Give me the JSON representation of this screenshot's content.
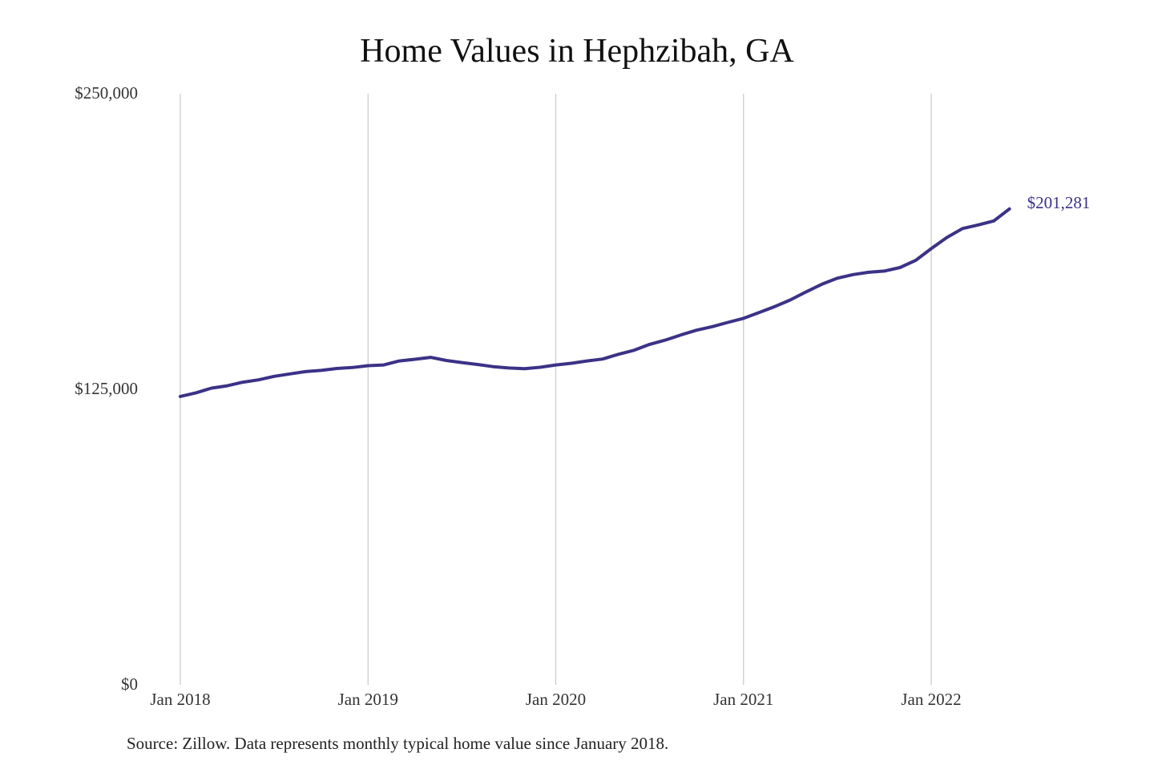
{
  "chart_data": {
    "type": "line",
    "title": "Home Values in Hephzibah, GA",
    "xlabel": "",
    "ylabel": "",
    "ylim": [
      0,
      250000
    ],
    "y_ticks": [
      0,
      125000,
      250000
    ],
    "y_tick_labels": [
      "$0",
      "$125,000",
      "$250,000"
    ],
    "x_ticks": [
      "2018-01",
      "2019-01",
      "2020-01",
      "2021-01",
      "2022-01"
    ],
    "x_tick_labels": [
      "Jan 2018",
      "Jan 2019",
      "Jan 2020",
      "Jan 2021",
      "Jan 2022"
    ],
    "grid": "vertical",
    "series": [
      {
        "color": "#3b3287",
        "points": [
          [
            "2018-01",
            122000
          ],
          [
            "2018-02",
            123500
          ],
          [
            "2018-03",
            125500
          ],
          [
            "2018-04",
            126500
          ],
          [
            "2018-05",
            128000
          ],
          [
            "2018-06",
            129000
          ],
          [
            "2018-07",
            130500
          ],
          [
            "2018-08",
            131500
          ],
          [
            "2018-09",
            132500
          ],
          [
            "2018-10",
            133000
          ],
          [
            "2018-11",
            133800
          ],
          [
            "2018-12",
            134200
          ],
          [
            "2019-01",
            135000
          ],
          [
            "2019-02",
            135300
          ],
          [
            "2019-03",
            137000
          ],
          [
            "2019-04",
            137700
          ],
          [
            "2019-05",
            138500
          ],
          [
            "2019-06",
            137200
          ],
          [
            "2019-07",
            136300
          ],
          [
            "2019-08",
            135500
          ],
          [
            "2019-09",
            134600
          ],
          [
            "2019-10",
            134000
          ],
          [
            "2019-11",
            133700
          ],
          [
            "2019-12",
            134300
          ],
          [
            "2020-01",
            135300
          ],
          [
            "2020-02",
            136000
          ],
          [
            "2020-03",
            137000
          ],
          [
            "2020-04",
            137800
          ],
          [
            "2020-05",
            139800
          ],
          [
            "2020-06",
            141500
          ],
          [
            "2020-07",
            144000
          ],
          [
            "2020-08",
            145800
          ],
          [
            "2020-09",
            148000
          ],
          [
            "2020-10",
            150000
          ],
          [
            "2020-11",
            151500
          ],
          [
            "2020-12",
            153300
          ],
          [
            "2021-01",
            155000
          ],
          [
            "2021-02",
            157500
          ],
          [
            "2021-03",
            160000
          ],
          [
            "2021-04",
            162800
          ],
          [
            "2021-05",
            166200
          ],
          [
            "2021-06",
            169400
          ],
          [
            "2021-07",
            172000
          ],
          [
            "2021-08",
            173500
          ],
          [
            "2021-09",
            174500
          ],
          [
            "2021-10",
            175000
          ],
          [
            "2021-11",
            176500
          ],
          [
            "2021-12",
            179500
          ],
          [
            "2022-01",
            184500
          ],
          [
            "2022-02",
            189200
          ],
          [
            "2022-03",
            193000
          ],
          [
            "2022-04",
            194500
          ],
          [
            "2022-05",
            196200
          ],
          [
            "2022-06",
            201281
          ]
        ]
      }
    ],
    "end_label": "$201,281"
  },
  "footer": {
    "source": "Source: Zillow. Data represents monthly typical home value since January 2018."
  }
}
